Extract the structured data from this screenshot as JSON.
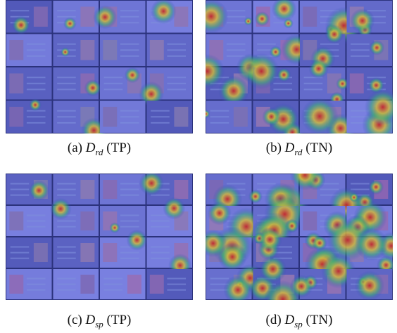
{
  "panels": [
    {
      "label": "(a)",
      "symbol": "D",
      "subscript": "rd",
      "tag": "(TP)"
    },
    {
      "label": "(b)",
      "symbol": "D",
      "subscript": "rd",
      "tag": "(TN)"
    },
    {
      "label": "(c)",
      "symbol": "D",
      "subscript": "sp",
      "tag": "(TP)"
    },
    {
      "label": "(d)",
      "symbol": "D",
      "subscript": "sp",
      "tag": "(TN)"
    }
  ]
}
